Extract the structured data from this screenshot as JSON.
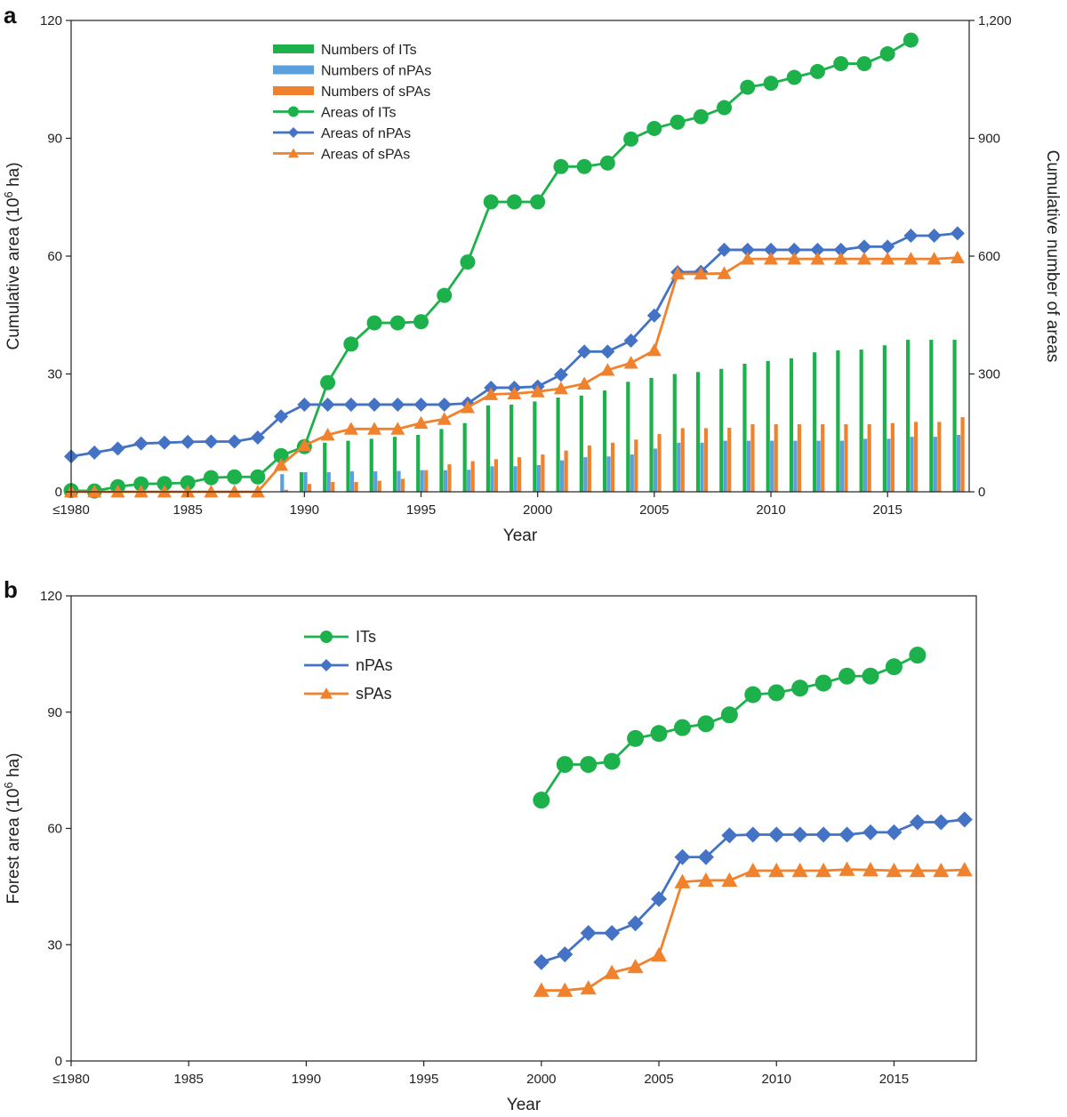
{
  "chart_data": [
    {
      "panel": "a",
      "type": "bar+line",
      "title": "",
      "xlabel": "Year",
      "ylabel": "Cumulative area (10",
      "ylabel_sup": "6",
      "ylabel_tail": " ha)",
      "y2label": "Cumulative number of areas",
      "x": [
        1980,
        1981,
        1982,
        1983,
        1984,
        1985,
        1986,
        1987,
        1988,
        1989,
        1990,
        1991,
        1992,
        1993,
        1994,
        1995,
        1996,
        1997,
        1998,
        1999,
        2000,
        2001,
        2002,
        2003,
        2004,
        2005,
        2006,
        2007,
        2008,
        2009,
        2010,
        2011,
        2012,
        2013,
        2014,
        2015,
        2016,
        2017,
        2018
      ],
      "xlim": [
        1980,
        2018.5
      ],
      "xticks": [
        1980,
        1985,
        1990,
        1995,
        2000,
        2005,
        2010,
        2015
      ],
      "xtick_labels": [
        "≤1980",
        "1985",
        "1990",
        "1995",
        "2000",
        "2005",
        "2010",
        "2015"
      ],
      "ylim": [
        0,
        120
      ],
      "yticks": [
        0,
        30,
        60,
        90,
        120
      ],
      "ytick_labels": [
        "0",
        "30",
        "60",
        "90",
        "120"
      ],
      "y2lim": [
        0,
        1200
      ],
      "y2ticks": [
        0,
        300,
        600,
        900,
        1200
      ],
      "y2tick_labels": [
        "0",
        "300",
        "600",
        "900",
        "1,200"
      ],
      "legend_position": "upper-center",
      "bar_series": [
        {
          "name": "Numbers of ITs",
          "color": "#1db14b",
          "values": [
            0,
            0,
            0,
            0,
            0,
            0,
            0,
            0,
            0,
            0,
            50,
            125,
            130,
            135,
            140,
            145,
            160,
            175,
            220,
            222,
            230,
            240,
            245,
            258,
            280,
            290,
            300,
            305,
            313,
            326,
            333,
            340,
            355,
            360,
            362,
            373,
            387,
            387,
            387
          ]
        },
        {
          "name": "Numbers of nPAs",
          "color": "#5aa0dc",
          "values": [
            0,
            0,
            0,
            0,
            0,
            0,
            0,
            0,
            0,
            45,
            50,
            50,
            52,
            52,
            53,
            55,
            55,
            56,
            65,
            65,
            68,
            80,
            88,
            90,
            95,
            110,
            125,
            125,
            130,
            130,
            130,
            130,
            130,
            130,
            135,
            135,
            140,
            140,
            145
          ]
        },
        {
          "name": "Numbers of sPAs",
          "color": "#f0822d",
          "values": [
            0,
            0,
            0,
            0,
            0,
            0,
            0,
            0,
            0,
            5,
            20,
            25,
            25,
            28,
            33,
            55,
            70,
            78,
            83,
            88,
            95,
            105,
            118,
            125,
            133,
            147,
            162,
            162,
            163,
            172,
            172,
            172,
            172,
            172,
            172,
            175,
            178,
            178,
            190
          ]
        }
      ],
      "line_series": [
        {
          "name": "Areas of ITs",
          "color": "#1db14b",
          "marker": "circle",
          "x": [
            1980,
            1981,
            1982,
            1983,
            1984,
            1985,
            1986,
            1987,
            1988,
            1989,
            1990,
            1991,
            1992,
            1993,
            1994,
            1995,
            1996,
            1997,
            1998,
            1999,
            2000,
            2001,
            2002,
            2003,
            2004,
            2005,
            2006,
            2007,
            2008,
            2009,
            2010,
            2011,
            2012,
            2013,
            2014,
            2015,
            2016
          ],
          "values": [
            0.3,
            0.2,
            1.3,
            2.0,
            2.1,
            2.3,
            3.6,
            3.8,
            3.8,
            9.2,
            11.5,
            27.8,
            37.6,
            43.0,
            43.0,
            43.3,
            50.0,
            58.5,
            73.8,
            73.8,
            73.8,
            82.8,
            82.8,
            83.7,
            89.8,
            92.5,
            94.1,
            95.5,
            97.8,
            103.0,
            104.0,
            105.5,
            107.0,
            109.0,
            109.0,
            111.5,
            115.0
          ]
        },
        {
          "name": "Areas of nPAs",
          "color": "#4472c4",
          "marker": "diamond",
          "x": [
            1980,
            1981,
            1982,
            1983,
            1984,
            1985,
            1986,
            1987,
            1988,
            1989,
            1990,
            1991,
            1992,
            1993,
            1994,
            1995,
            1996,
            1997,
            1998,
            1999,
            2000,
            2001,
            2002,
            2003,
            2004,
            2005,
            2006,
            2007,
            2008,
            2009,
            2010,
            2011,
            2012,
            2013,
            2014,
            2015,
            2016,
            2017,
            2018
          ],
          "values": [
            9.0,
            10.0,
            11.0,
            12.3,
            12.5,
            12.7,
            12.8,
            12.8,
            13.8,
            19.2,
            22.2,
            22.2,
            22.2,
            22.2,
            22.2,
            22.2,
            22.2,
            22.5,
            26.5,
            26.5,
            26.8,
            29.8,
            35.7,
            35.7,
            38.5,
            44.9,
            55.9,
            56.0,
            61.6,
            61.6,
            61.6,
            61.6,
            61.6,
            61.6,
            62.4,
            62.4,
            65.2,
            65.2,
            65.8
          ]
        },
        {
          "name": "Areas of sPAs",
          "color": "#f0822d",
          "marker": "triangle",
          "x": [
            1980,
            1981,
            1982,
            1983,
            1984,
            1985,
            1986,
            1987,
            1988,
            1989,
            1990,
            1991,
            1992,
            1993,
            1994,
            1995,
            1996,
            1997,
            1998,
            1999,
            2000,
            2001,
            2002,
            2003,
            2004,
            2005,
            2006,
            2007,
            2008,
            2009,
            2010,
            2011,
            2012,
            2013,
            2014,
            2015,
            2016,
            2017,
            2018
          ],
          "values": [
            0,
            0,
            0,
            0,
            0,
            0,
            0,
            0,
            0,
            6.8,
            11.8,
            14.5,
            16.0,
            16.0,
            16.0,
            17.5,
            18.5,
            21.5,
            24.8,
            25.0,
            25.5,
            26.3,
            27.5,
            31.0,
            32.8,
            36.0,
            55.5,
            55.5,
            55.6,
            59.3,
            59.3,
            59.3,
            59.3,
            59.3,
            59.3,
            59.3,
            59.3,
            59.3,
            59.6
          ]
        }
      ]
    },
    {
      "panel": "b",
      "type": "line",
      "title": "",
      "xlabel": "Year",
      "ylabel": "Forest area (10",
      "ylabel_sup": "6",
      "ylabel_tail": " ha)",
      "xlim": [
        1980,
        2018.5
      ],
      "xticks": [
        1980,
        1985,
        1990,
        1995,
        2000,
        2005,
        2010,
        2015
      ],
      "xtick_labels": [
        "≤1980",
        "1985",
        "1990",
        "1995",
        "2000",
        "2005",
        "2010",
        "2015"
      ],
      "ylim": [
        0,
        120
      ],
      "yticks": [
        0,
        30,
        60,
        90,
        120
      ],
      "ytick_labels": [
        "0",
        "30",
        "60",
        "90",
        "120"
      ],
      "legend_position": "upper-left",
      "line_series": [
        {
          "name": "ITs",
          "color": "#1db14b",
          "marker": "circle",
          "x": [
            2000,
            2001,
            2002,
            2003,
            2004,
            2005,
            2006,
            2007,
            2008,
            2009,
            2010,
            2011,
            2012,
            2013,
            2014,
            2015,
            2016
          ],
          "values": [
            67.3,
            76.5,
            76.5,
            77.3,
            83.2,
            84.5,
            86.0,
            87.0,
            89.3,
            94.5,
            95.0,
            96.2,
            97.5,
            99.3,
            99.3,
            101.7,
            104.7
          ]
        },
        {
          "name": "nPAs",
          "color": "#4472c4",
          "marker": "diamond",
          "x": [
            2000,
            2001,
            2002,
            2003,
            2004,
            2005,
            2006,
            2007,
            2008,
            2009,
            2010,
            2011,
            2012,
            2013,
            2014,
            2015,
            2016,
            2017,
            2018
          ],
          "values": [
            25.5,
            27.5,
            33.0,
            33.0,
            35.5,
            41.8,
            52.6,
            52.6,
            58.2,
            58.4,
            58.4,
            58.4,
            58.4,
            58.4,
            59.0,
            59.0,
            61.6,
            61.6,
            62.3
          ]
        },
        {
          "name": "sPAs",
          "color": "#f0822d",
          "marker": "triangle",
          "x": [
            2000,
            2001,
            2002,
            2003,
            2004,
            2005,
            2006,
            2007,
            2008,
            2009,
            2010,
            2011,
            2012,
            2013,
            2014,
            2015,
            2016,
            2017,
            2018
          ],
          "values": [
            18.2,
            18.2,
            18.8,
            22.8,
            24.3,
            27.3,
            46.2,
            46.6,
            46.6,
            49.1,
            49.1,
            49.1,
            49.1,
            49.4,
            49.3,
            49.1,
            49.1,
            49.1,
            49.3
          ]
        }
      ]
    }
  ]
}
